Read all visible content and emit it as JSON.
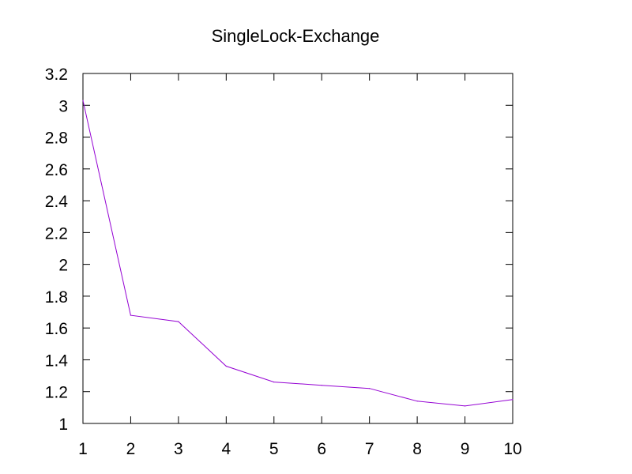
{
  "chart_data": {
    "type": "line",
    "title": "SingleLock-Exchange",
    "xlabel": "",
    "ylabel": "",
    "xlim": [
      1,
      10
    ],
    "ylim": [
      1,
      3.2
    ],
    "x_ticks": [
      "1",
      "2",
      "3",
      "4",
      "5",
      "6",
      "7",
      "8",
      "9",
      "10"
    ],
    "y_ticks": [
      "1",
      "1.2",
      "1.4",
      "1.6",
      "1.8",
      "2",
      "2.2",
      "2.4",
      "2.6",
      "2.8",
      "3",
      "3.2"
    ],
    "grid": false,
    "legend": "none",
    "series": [
      {
        "color": "#9400d3",
        "x": [
          1,
          2,
          3,
          4,
          5,
          6,
          7,
          8,
          9,
          10
        ],
        "y": [
          3.03,
          1.68,
          1.64,
          1.36,
          1.26,
          1.24,
          1.22,
          1.14,
          1.11,
          1.15
        ]
      }
    ]
  }
}
